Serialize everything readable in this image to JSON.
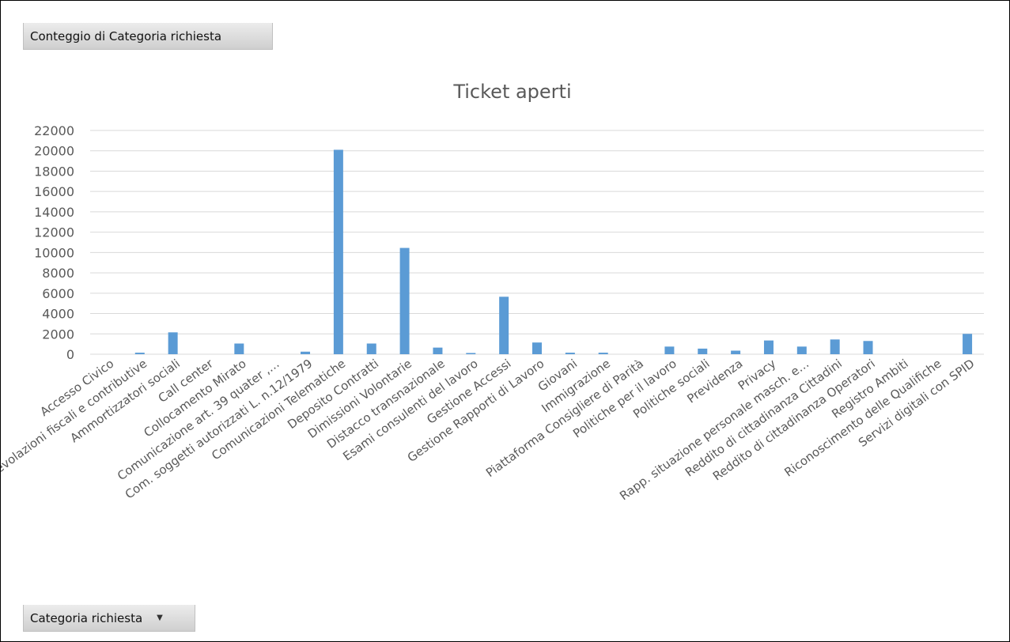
{
  "pivot": {
    "value_field_label": "Conteggio di Categoria richiesta",
    "axis_field_label": "Categoria richiesta",
    "dropdown_icon": "chevron-down-icon"
  },
  "colors": {
    "bar": "#5b9bd5",
    "grid": "#d9d9d9",
    "text": "#595959"
  },
  "chart_data": {
    "type": "bar",
    "title": "Ticket aperti",
    "xlabel": "",
    "ylabel": "",
    "ylim": [
      0,
      22000
    ],
    "yticks": [
      0,
      2000,
      4000,
      6000,
      8000,
      10000,
      12000,
      14000,
      16000,
      18000,
      20000,
      22000
    ],
    "grid": true,
    "legend": "none",
    "categories": [
      "Accesso Civico",
      "Agevolazioni fiscali e contributive",
      "Ammortizzatori sociali",
      "Call center",
      "Collocamento Mirato",
      "Comunicazione art. 39 quater ,…",
      "Com. soggetti autorizzati L. n.12/1979",
      "Comunicazioni Telematiche",
      "Deposito Contratti",
      "Dimissioni Volontarie",
      "Distacco transnazionale",
      "Esami consulenti del lavoro",
      "Gestione Accessi",
      "Gestione Rapporti di Lavoro",
      "Giovani",
      "Immigrazione",
      "Piattaforma Consigliere di Parità",
      "Politiche per il lavoro",
      "Politiche sociali",
      "Previdenza",
      "Privacy",
      "Rapp. situazione personale masch. e…",
      "Reddito di cittadinanza Cittadini",
      "Reddito di cittadinanza Operatori",
      "Registro Ambiti",
      "Riconoscimento delle Qualifiche",
      "Servizi digitali con SPID"
    ],
    "values": [
      0,
      150,
      2150,
      0,
      1050,
      0,
      250,
      20100,
      1050,
      10450,
      650,
      120,
      5650,
      1150,
      150,
      150,
      0,
      750,
      550,
      350,
      1350,
      750,
      1450,
      1300,
      0,
      0,
      2000
    ]
  }
}
